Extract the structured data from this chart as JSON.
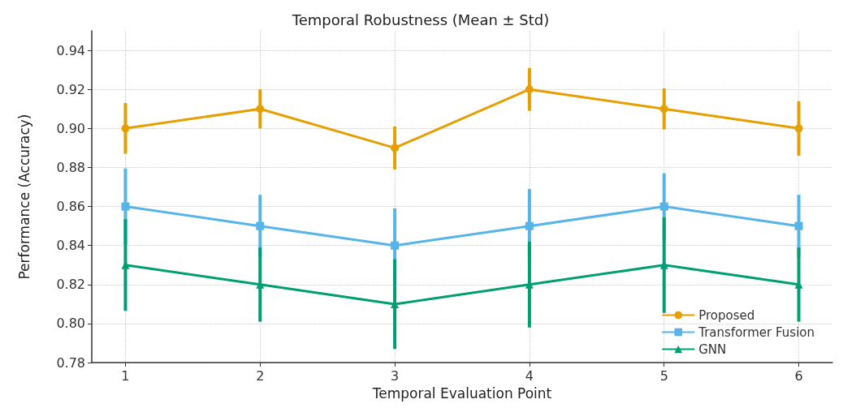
{
  "chart_data": {
    "type": "line",
    "title": "Temporal Robustness (Mean ± Std)",
    "xlabel": "Temporal Evaluation Point",
    "ylabel": "Performance (Accuracy)",
    "x": [
      1,
      2,
      3,
      4,
      5,
      6
    ],
    "series": [
      {
        "name": "Proposed",
        "color": "#e69f00",
        "marker": "circle",
        "values": [
          0.9,
          0.91,
          0.89,
          0.92,
          0.91,
          0.9
        ],
        "errors": [
          0.013,
          0.01,
          0.011,
          0.011,
          0.0105,
          0.014
        ]
      },
      {
        "name": "Transformer Fusion",
        "color": "#56b4e9",
        "marker": "square",
        "values": [
          0.86,
          0.85,
          0.84,
          0.85,
          0.86,
          0.85
        ],
        "errors": [
          0.0195,
          0.016,
          0.019,
          0.019,
          0.017,
          0.016
        ]
      },
      {
        "name": "GNN",
        "color": "#009e73",
        "marker": "triangle",
        "values": [
          0.83,
          0.82,
          0.81,
          0.82,
          0.83,
          0.82
        ],
        "errors": [
          0.0235,
          0.019,
          0.023,
          0.022,
          0.0245,
          0.019
        ]
      }
    ],
    "xlim": [
      0.75,
      6.25
    ],
    "xticks": [
      1,
      2,
      3,
      4,
      5,
      6
    ],
    "ylim": [
      0.78,
      0.95
    ],
    "yticks": [
      {
        "value": 0.78,
        "label": "0.78"
      },
      {
        "value": 0.8,
        "label": "0.80"
      },
      {
        "value": 0.82,
        "label": "0.82"
      },
      {
        "value": 0.84,
        "label": "0.84"
      },
      {
        "value": 0.86,
        "label": "0.86"
      },
      {
        "value": 0.88,
        "label": "0.88"
      },
      {
        "value": 0.9,
        "label": "0.90"
      },
      {
        "value": 0.92,
        "label": "0.92"
      },
      {
        "value": 0.94,
        "label": "0.94"
      }
    ],
    "grid": true,
    "legend": "bottom right",
    "line_style": "solid"
  }
}
